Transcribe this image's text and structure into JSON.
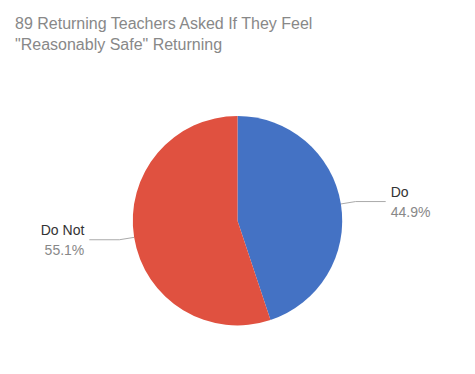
{
  "chart_data": {
    "type": "pie",
    "title": "89 Returning Teachers Asked If They Feel\n\"Reasonably Safe\" Returning",
    "categories": [
      "Do",
      "Do Not"
    ],
    "values": [
      44.9,
      55.1
    ],
    "value_labels": [
      "44.9%",
      "55.1%"
    ],
    "colors": [
      "#4472C4",
      "#E05140"
    ],
    "data_labels": true
  }
}
